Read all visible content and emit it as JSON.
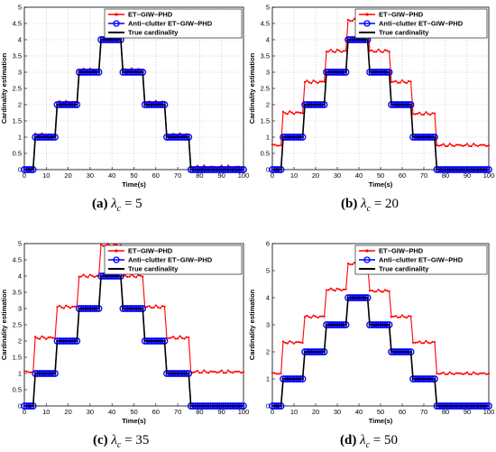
{
  "colors": {
    "et": "#ff0000",
    "anti": "#0000ff",
    "true": "#000000",
    "grid": "#c8c8c8"
  },
  "chart_data": [
    {
      "type": "line",
      "caption": {
        "letter": "(a)",
        "param": "λ",
        "sub": "c",
        "eq": "= 5"
      },
      "xlabel": "Time(s)",
      "ylabel": "Cardinality estimation",
      "xlim": [
        0,
        100
      ],
      "ylim": [
        0,
        5
      ],
      "xticks": [
        0,
        10,
        20,
        30,
        40,
        50,
        60,
        70,
        80,
        90,
        100
      ],
      "yticks": [
        "0",
        "0.5",
        "1",
        "1.5",
        "2",
        "2.5",
        "3",
        "3.5",
        "4",
        "4.5",
        "5"
      ],
      "grid": true,
      "legend_position": "top-right",
      "series": [
        {
          "name": "ET−GIW−PHD",
          "levels": [
            [
              0,
              0.05
            ],
            [
              5,
              1.07
            ],
            [
              15,
              2.07
            ],
            [
              25,
              3.07
            ],
            [
              35,
              4.07
            ],
            [
              45,
              3.07
            ],
            [
              55,
              2.07
            ],
            [
              65,
              1.07
            ],
            [
              76,
              0.08
            ]
          ]
        },
        {
          "name": "Anti−clutter ET−GIW−PHD",
          "levels": [
            [
              0,
              0.0
            ],
            [
              5,
              1.0
            ],
            [
              15,
              2.0
            ],
            [
              25,
              3.0
            ],
            [
              35,
              4.0
            ],
            [
              45,
              3.0
            ],
            [
              55,
              2.0
            ],
            [
              65,
              1.0
            ],
            [
              76,
              0.0
            ]
          ]
        },
        {
          "name": "True cardinality",
          "levels": [
            [
              0,
              0
            ],
            [
              5,
              1
            ],
            [
              15,
              2
            ],
            [
              25,
              3
            ],
            [
              35,
              4
            ],
            [
              45,
              3
            ],
            [
              55,
              2
            ],
            [
              65,
              1
            ],
            [
              76,
              0
            ]
          ]
        }
      ]
    },
    {
      "type": "line",
      "caption": {
        "letter": "(b)",
        "param": "λ",
        "sub": "c",
        "eq": "= 20"
      },
      "xlabel": "Time(s)",
      "ylabel": "Cardinality estimation",
      "xlim": [
        0,
        100
      ],
      "ylim": [
        0,
        5
      ],
      "xticks": [
        0,
        10,
        20,
        30,
        40,
        50,
        60,
        70,
        80,
        90,
        100
      ],
      "yticks": [
        "0",
        "0.5",
        "1",
        "1.5",
        "2",
        "2.5",
        "3",
        "3.5",
        "4",
        "4.5",
        "5"
      ],
      "grid": true,
      "legend_position": "top-right",
      "series": [
        {
          "name": "ET−GIW−PHD",
          "levels": [
            [
              0,
              0.75
            ],
            [
              5,
              1.75
            ],
            [
              15,
              2.7
            ],
            [
              25,
              3.65
            ],
            [
              35,
              4.6
            ],
            [
              45,
              3.65
            ],
            [
              55,
              2.7
            ],
            [
              65,
              1.72
            ],
            [
              76,
              0.75
            ]
          ]
        },
        {
          "name": "Anti−clutter ET−GIW−PHD",
          "levels": [
            [
              0,
              0.0
            ],
            [
              5,
              1.0
            ],
            [
              15,
              2.0
            ],
            [
              25,
              3.0
            ],
            [
              35,
              4.0
            ],
            [
              45,
              3.0
            ],
            [
              55,
              2.0
            ],
            [
              65,
              1.0
            ],
            [
              76,
              0.0
            ]
          ]
        },
        {
          "name": "True cardinality",
          "levels": [
            [
              0,
              0
            ],
            [
              5,
              1
            ],
            [
              15,
              2
            ],
            [
              25,
              3
            ],
            [
              35,
              4
            ],
            [
              45,
              3
            ],
            [
              55,
              2
            ],
            [
              65,
              1
            ],
            [
              76,
              0
            ]
          ]
        }
      ]
    },
    {
      "type": "line",
      "caption": {
        "letter": "(c)",
        "param": "λ",
        "sub": "c",
        "eq": "= 35"
      },
      "xlabel": "Time(s)",
      "ylabel": "Cardinality estimation",
      "xlim": [
        0,
        100
      ],
      "ylim": [
        0,
        5
      ],
      "xticks": [
        0,
        10,
        20,
        30,
        40,
        50,
        60,
        70,
        80,
        90,
        100
      ],
      "yticks": [
        "0",
        "0.5",
        "1",
        "1.5",
        "2",
        "2.5",
        "3",
        "3.5",
        "4",
        "4.5",
        "5"
      ],
      "grid": false,
      "legend_position": "top-right",
      "series": [
        {
          "name": "ET−GIW−PHD",
          "levels": [
            [
              0,
              1.05
            ],
            [
              5,
              2.1
            ],
            [
              15,
              3.05
            ],
            [
              25,
              4.0
            ],
            [
              35,
              4.95
            ],
            [
              45,
              4.0
            ],
            [
              55,
              3.05
            ],
            [
              65,
              2.1
            ],
            [
              76,
              1.05
            ]
          ]
        },
        {
          "name": "Anti−clutter ET−GIW−PHD",
          "levels": [
            [
              0,
              0.0
            ],
            [
              5,
              1.0
            ],
            [
              15,
              2.0
            ],
            [
              25,
              3.0
            ],
            [
              35,
              4.0
            ],
            [
              45,
              3.0
            ],
            [
              55,
              2.0
            ],
            [
              65,
              1.0
            ],
            [
              76,
              0.0
            ]
          ]
        },
        {
          "name": "True cardinality",
          "levels": [
            [
              0,
              0
            ],
            [
              5,
              1
            ],
            [
              15,
              2
            ],
            [
              25,
              3
            ],
            [
              35,
              4
            ],
            [
              45,
              3
            ],
            [
              55,
              2
            ],
            [
              65,
              1
            ],
            [
              76,
              0
            ]
          ]
        }
      ]
    },
    {
      "type": "line",
      "caption": {
        "letter": "(d)",
        "param": "λ",
        "sub": "c",
        "eq": "= 50"
      },
      "xlabel": "Time(s)",
      "ylabel": "Cardinality estimation",
      "xlim": [
        0,
        100
      ],
      "ylim": [
        0,
        6
      ],
      "xticks": [
        0,
        10,
        20,
        30,
        40,
        50,
        60,
        70,
        80,
        90,
        100
      ],
      "yticks": [
        "0",
        "1",
        "2",
        "3",
        "4",
        "5",
        "6"
      ],
      "grid": false,
      "legend_position": "top-right",
      "series": [
        {
          "name": "ET−GIW−PHD",
          "levels": [
            [
              0,
              1.2
            ],
            [
              5,
              2.35
            ],
            [
              15,
              3.3
            ],
            [
              25,
              4.3
            ],
            [
              35,
              5.25
            ],
            [
              45,
              4.25
            ],
            [
              55,
              3.3
            ],
            [
              65,
              2.35
            ],
            [
              76,
              1.2
            ]
          ]
        },
        {
          "name": "Anti−clutter ET−GIW−PHD",
          "levels": [
            [
              0,
              0.0
            ],
            [
              5,
              1.0
            ],
            [
              15,
              2.0
            ],
            [
              25,
              3.0
            ],
            [
              35,
              4.0
            ],
            [
              45,
              3.0
            ],
            [
              55,
              2.0
            ],
            [
              65,
              1.0
            ],
            [
              76,
              0.0
            ]
          ]
        },
        {
          "name": "True cardinality",
          "levels": [
            [
              0,
              0
            ],
            [
              5,
              1
            ],
            [
              15,
              2
            ],
            [
              25,
              3
            ],
            [
              35,
              4
            ],
            [
              45,
              3
            ],
            [
              55,
              2
            ],
            [
              65,
              1
            ],
            [
              76,
              0
            ]
          ]
        }
      ]
    }
  ]
}
